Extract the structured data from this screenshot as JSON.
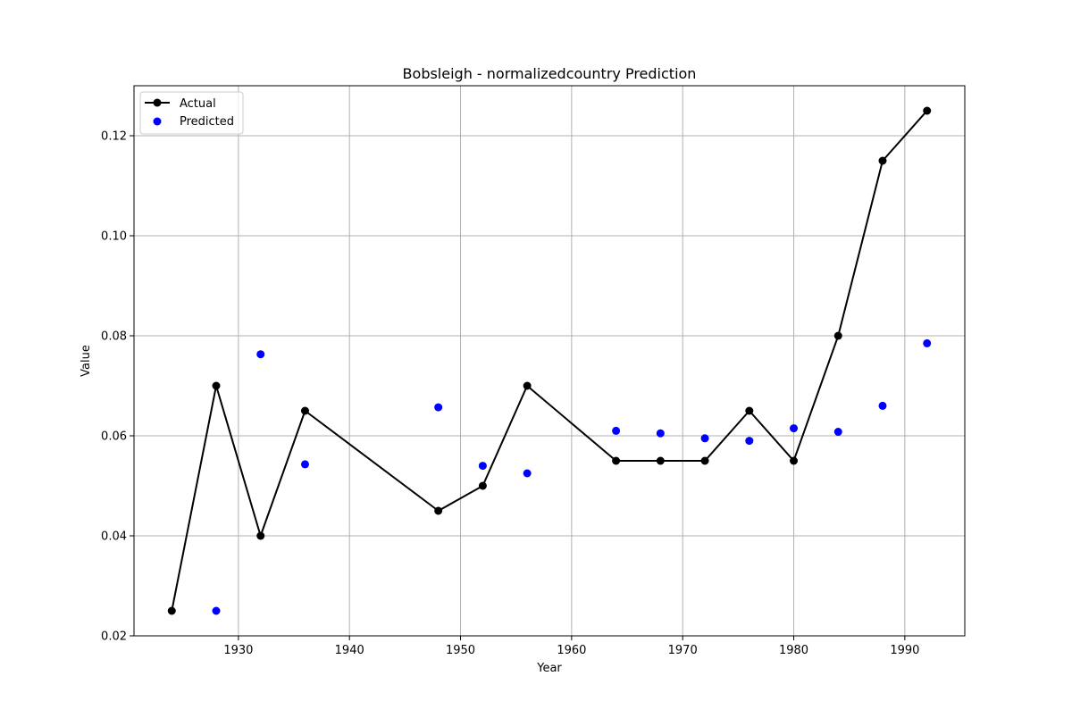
{
  "chart_data": {
    "type": "line",
    "title": "Bobsleigh - normalizedcountry Prediction",
    "xlabel": "Year",
    "ylabel": "Value",
    "xlim": [
      1920.6,
      1995.4
    ],
    "ylim": [
      0.02,
      0.13
    ],
    "xticks": [
      1930,
      1940,
      1950,
      1960,
      1970,
      1980,
      1990
    ],
    "xtick_labels": [
      "1930",
      "1940",
      "1950",
      "1960",
      "1970",
      "1980",
      "1990"
    ],
    "yticks": [
      0.02,
      0.04,
      0.06,
      0.08,
      0.1,
      0.12
    ],
    "ytick_labels": [
      "0.02",
      "0.04",
      "0.06",
      "0.08",
      "0.10",
      "0.12"
    ],
    "grid": true,
    "legend_position": "top-left",
    "series": [
      {
        "name": "Actual",
        "kind": "line-with-markers",
        "color": "#000000",
        "x": [
          1924,
          1928,
          1932,
          1936,
          1948,
          1952,
          1956,
          1964,
          1968,
          1972,
          1976,
          1980,
          1984,
          1988,
          1992
        ],
        "y": [
          0.025,
          0.07,
          0.04,
          0.065,
          0.045,
          0.05,
          0.07,
          0.055,
          0.055,
          0.055,
          0.065,
          0.055,
          0.08,
          0.115,
          0.125
        ]
      },
      {
        "name": "Predicted",
        "kind": "scatter",
        "color": "#0000ff",
        "x": [
          1928,
          1932,
          1936,
          1948,
          1952,
          1956,
          1964,
          1968,
          1972,
          1976,
          1980,
          1984,
          1988,
          1992
        ],
        "y": [
          0.025,
          0.0763,
          0.0543,
          0.0657,
          0.054,
          0.0525,
          0.061,
          0.0605,
          0.0595,
          0.059,
          0.0615,
          0.0608,
          0.066,
          0.0785
        ]
      }
    ]
  }
}
